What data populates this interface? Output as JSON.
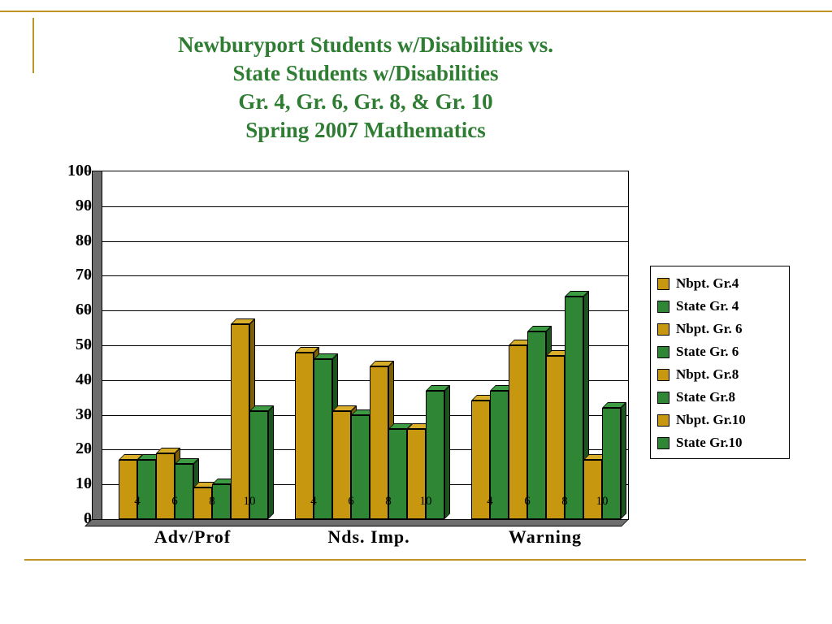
{
  "slide": {
    "title_lines": [
      "Newburyport Students w/Disabilities vs.",
      "State Students w/Disabilities",
      "Gr. 4, Gr. 6, Gr. 8, & Gr. 10",
      "Spring 2007 Mathematics"
    ],
    "title_color": "#2E7D32",
    "rule_color": "#C09326"
  },
  "chart_data": {
    "type": "bar",
    "style": "3d-clustered",
    "title": "Newburyport Students w/Disabilities vs. State Students w/Disabilities Gr. 4, Gr. 6, Gr. 8, & Gr. 10 Spring 2007 Mathematics",
    "categories": [
      "Adv/Prof",
      "Nds. Imp.",
      "Warning"
    ],
    "grade_tick_labels": [
      "4",
      "6",
      "8",
      "10"
    ],
    "ylim": [
      0,
      100
    ],
    "ytick_step": 10,
    "grid": true,
    "legend_position": "right",
    "series": [
      {
        "name": "Nbpt. Gr.4",
        "color": "gold",
        "values": [
          17,
          48,
          34
        ]
      },
      {
        "name": "State Gr. 4",
        "color": "green",
        "values": [
          17,
          46,
          37
        ]
      },
      {
        "name": "Nbpt. Gr. 6",
        "color": "gold",
        "values": [
          19,
          31,
          50
        ]
      },
      {
        "name": "State Gr. 6",
        "color": "green",
        "values": [
          16,
          30,
          54
        ]
      },
      {
        "name": "Nbpt. Gr.8",
        "color": "gold",
        "values": [
          9,
          44,
          47
        ]
      },
      {
        "name": "State Gr.8",
        "color": "green",
        "values": [
          10,
          26,
          64
        ]
      },
      {
        "name": "Nbpt. Gr.10",
        "color": "gold",
        "values": [
          56,
          26,
          17
        ]
      },
      {
        "name": "State Gr.10",
        "color": "green",
        "values": [
          31,
          37,
          32
        ]
      }
    ],
    "colors": {
      "gold": "#C6970F",
      "gold_dark": "#7D5F06",
      "gold_light": "#D9AE2A",
      "green": "#2F8735",
      "green_dark": "#1A5520",
      "green_light": "#3D9B43",
      "wall": "#6E6E6E"
    }
  }
}
